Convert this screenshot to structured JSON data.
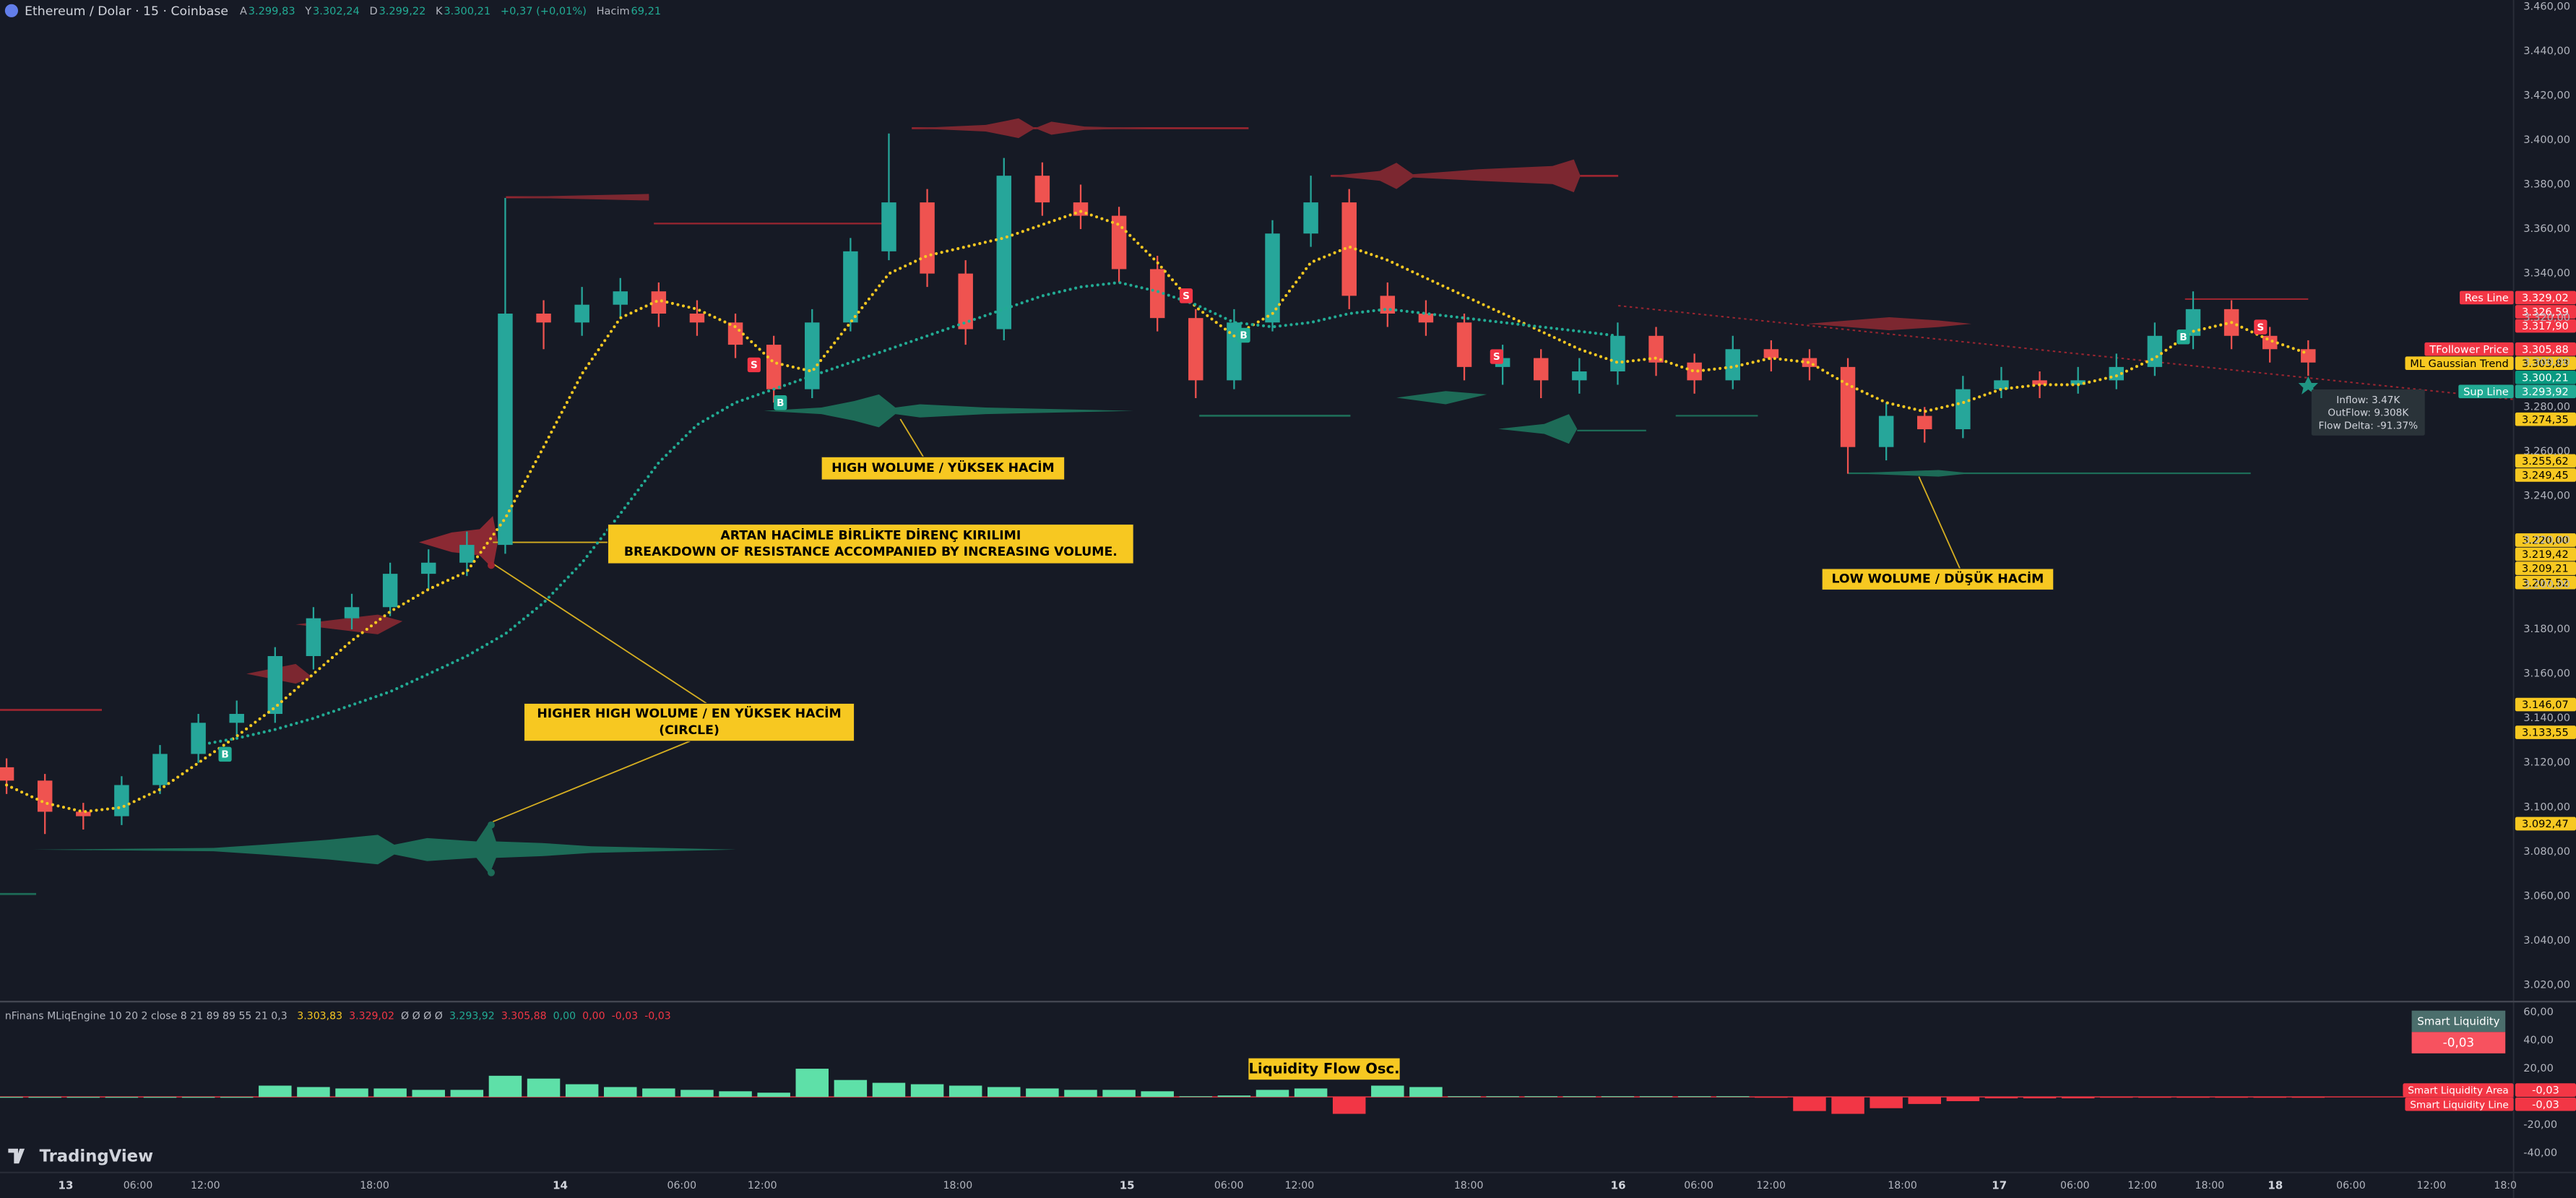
{
  "header": {
    "symbol": "Ethereum / Dolar · 15 · Coinbase",
    "quote": [
      {
        "key": "A",
        "value": "3.299,83"
      },
      {
        "key": "Y",
        "value": "3.302,24"
      },
      {
        "key": "D",
        "value": "3.299,22"
      },
      {
        "key": "K",
        "value": "3.300,21"
      }
    ],
    "change": "+0,37 (+0,01%)",
    "volume_key": "Hacim",
    "volume": "69,21"
  },
  "time_labels": [
    "13",
    "06:00",
    "12:00",
    "18:00",
    "14",
    "06:00",
    "12:00",
    "18:00",
    "15",
    "06:00",
    "12:00",
    "18:00",
    "16",
    "06:00",
    "12:00",
    "18:00",
    "17",
    "06:00",
    "12:00",
    "18:00",
    "18",
    "06:00",
    "12:00",
    "18:0"
  ],
  "chart_data": [
    {
      "type": "candlestick",
      "up_color": "#26a69a",
      "down_color": "#ef5350",
      "grid": false,
      "ylim": [
        3013,
        3463
      ],
      "yticks": [
        {
          "value": 3020,
          "label": "3.020,00"
        },
        {
          "value": 3040,
          "label": "3.040,00"
        },
        {
          "value": 3060,
          "label": "3.060,00"
        },
        {
          "value": 3080,
          "label": "3.080,00"
        },
        {
          "value": 3100,
          "label": "3.100,00"
        },
        {
          "value": 3120,
          "label": "3.120,00"
        },
        {
          "value": 3140,
          "label": "3.140,00"
        },
        {
          "value": 3160,
          "label": "3.160,00"
        },
        {
          "value": 3180,
          "label": "3.180,00"
        },
        {
          "value": 3200,
          "label": "3.200,00"
        },
        {
          "value": 3220,
          "label": "3.220,00"
        },
        {
          "value": 3240,
          "label": "3.240,00"
        },
        {
          "value": 3260,
          "label": "3.260,00"
        },
        {
          "value": 3280,
          "label": "3.280,00"
        },
        {
          "value": 3300,
          "label": "3.300,00"
        },
        {
          "value": 3320,
          "label": "3.320,00"
        },
        {
          "value": 3340,
          "label": "3.340,00"
        },
        {
          "value": 3360,
          "label": "3.360,00"
        },
        {
          "value": 3380,
          "label": "3.380,00"
        },
        {
          "value": 3400,
          "label": "3.400,00"
        },
        {
          "value": 3420,
          "label": "3.420,00"
        },
        {
          "value": 3440,
          "label": "3.440,00"
        },
        {
          "value": 3460,
          "label": "3.460,00"
        }
      ],
      "ohlc": [
        [
          3118,
          3122,
          3106,
          3112
        ],
        [
          3112,
          3115,
          3088,
          3098
        ],
        [
          3098,
          3102,
          3090,
          3096
        ],
        [
          3096,
          3114,
          3092,
          3110
        ],
        [
          3110,
          3128,
          3106,
          3124
        ],
        [
          3124,
          3142,
          3120,
          3138
        ],
        [
          3138,
          3148,
          3132,
          3142
        ],
        [
          3142,
          3172,
          3138,
          3168
        ],
        [
          3168,
          3190,
          3162,
          3185
        ],
        [
          3185,
          3196,
          3180,
          3190
        ],
        [
          3190,
          3210,
          3186,
          3205
        ],
        [
          3205,
          3216,
          3198,
          3210
        ],
        [
          3210,
          3224,
          3204,
          3218
        ],
        [
          3218,
          3374,
          3214,
          3322
        ],
        [
          3322,
          3328,
          3306,
          3318
        ],
        [
          3318,
          3334,
          3312,
          3326
        ],
        [
          3326,
          3338,
          3320,
          3332
        ],
        [
          3332,
          3336,
          3316,
          3322
        ],
        [
          3322,
          3328,
          3312,
          3318
        ],
        [
          3318,
          3322,
          3302,
          3308
        ],
        [
          3308,
          3312,
          3282,
          3288
        ],
        [
          3288,
          3324,
          3284,
          3318
        ],
        [
          3318,
          3356,
          3314,
          3350
        ],
        [
          3350,
          3403,
          3346,
          3372
        ],
        [
          3372,
          3378,
          3334,
          3340
        ],
        [
          3340,
          3346,
          3308,
          3315
        ],
        [
          3315,
          3392,
          3310,
          3384
        ],
        [
          3384,
          3390,
          3366,
          3372
        ],
        [
          3372,
          3380,
          3360,
          3366
        ],
        [
          3366,
          3370,
          3336,
          3342
        ],
        [
          3342,
          3348,
          3314,
          3320
        ],
        [
          3320,
          3324,
          3284,
          3292
        ],
        [
          3292,
          3324,
          3288,
          3318
        ],
        [
          3318,
          3364,
          3314,
          3358
        ],
        [
          3358,
          3384,
          3352,
          3372
        ],
        [
          3372,
          3378,
          3324,
          3330
        ],
        [
          3330,
          3336,
          3316,
          3322
        ],
        [
          3322,
          3328,
          3312,
          3318
        ],
        [
          3318,
          3322,
          3292,
          3298
        ],
        [
          3298,
          3308,
          3290,
          3302
        ],
        [
          3302,
          3306,
          3284,
          3292
        ],
        [
          3292,
          3302,
          3286,
          3296
        ],
        [
          3296,
          3318,
          3290,
          3312
        ],
        [
          3312,
          3316,
          3294,
          3300
        ],
        [
          3300,
          3304,
          3286,
          3292
        ],
        [
          3292,
          3312,
          3288,
          3306
        ],
        [
          3306,
          3310,
          3296,
          3302
        ],
        [
          3302,
          3306,
          3292,
          3298
        ],
        [
          3298,
          3302,
          3250,
          3262
        ],
        [
          3262,
          3282,
          3256,
          3276
        ],
        [
          3276,
          3280,
          3264,
          3270
        ],
        [
          3270,
          3294,
          3266,
          3288
        ],
        [
          3288,
          3298,
          3284,
          3292
        ],
        [
          3292,
          3296,
          3284,
          3290
        ],
        [
          3290,
          3298,
          3286,
          3292
        ],
        [
          3292,
          3304,
          3288,
          3298
        ],
        [
          3298,
          3318,
          3294,
          3312
        ],
        [
          3312,
          3332,
          3306,
          3324
        ],
        [
          3324,
          3328,
          3306,
          3312
        ],
        [
          3312,
          3316,
          3300,
          3306
        ],
        [
          3306,
          3310,
          3294,
          3300
        ]
      ],
      "lines": [
        {
          "color": "#f7c821",
          "style": "dotted",
          "values": [
            3110,
            3102,
            3098,
            3100,
            3108,
            3120,
            3132,
            3145,
            3160,
            3175,
            3188,
            3198,
            3206,
            3230,
            3262,
            3295,
            3320,
            3328,
            3324,
            3316,
            3300,
            3296,
            3318,
            3340,
            3348,
            3352,
            3356,
            3362,
            3368,
            3362,
            3345,
            3325,
            3312,
            3322,
            3345,
            3352,
            3346,
            3338,
            3330,
            3322,
            3314,
            3306,
            3300,
            3302,
            3296,
            3298,
            3302,
            3300,
            3290,
            3282,
            3278,
            3282,
            3288,
            3290,
            3290,
            3294,
            3302,
            3314,
            3318,
            3310,
            3304
          ]
        },
        {
          "color": "#22ab94",
          "style": "dotted",
          "values": [
            null,
            null,
            null,
            null,
            null,
            3128,
            3131,
            3135,
            3140,
            3146,
            3152,
            3160,
            3168,
            3178,
            3192,
            3210,
            3232,
            3255,
            3272,
            3282,
            3288,
            3294,
            3300,
            3306,
            3312,
            3318,
            3324,
            3330,
            3334,
            3336,
            3332,
            3326,
            3318,
            3316,
            3318,
            3322,
            3324,
            3322,
            3320,
            3318,
            3316,
            3314,
            3312,
            null,
            null,
            null,
            null,
            null,
            null,
            null,
            null,
            null,
            null,
            null,
            null,
            null,
            null,
            null,
            null,
            null,
            null
          ]
        }
      ],
      "price_labels": [
        {
          "name": "Res Line",
          "value": 3329.02,
          "label": "3.329,02",
          "color": "#f23645"
        },
        {
          "value": 3326.59,
          "label": "3.326,59",
          "color": "#f23645"
        },
        {
          "value": 3317.9,
          "label": "3.317,90",
          "color": "#f23645"
        },
        {
          "name": "TFollower Price",
          "value": 3305.88,
          "label": "3.305,88",
          "color": "#f23645"
        },
        {
          "name": "ML Gaussian Trend",
          "value": 3303.83,
          "label": "3.303,83",
          "color": "#f7c821"
        },
        {
          "value": 3300.21,
          "label": "3.300,21",
          "color": "#089981"
        },
        {
          "name": "Sup Line",
          "value": 3293.92,
          "label": "3.293,92",
          "color": "#22ab94"
        },
        {
          "value": 3274.35,
          "label": "3.274,35",
          "color": "#f7c821"
        },
        {
          "value": 3255.62,
          "label": "3.255,62",
          "color": "#f7c821"
        },
        {
          "value": 3249.45,
          "label": "3.249,45",
          "color": "#f7c821"
        },
        {
          "value": 3220,
          "label": "3.220,00",
          "color": "#f7c821"
        },
        {
          "value": 3219.42,
          "label": "3.219,42",
          "color": "#f7c821"
        },
        {
          "value": 3209.21,
          "label": "3.209,21",
          "color": "#f7c821"
        },
        {
          "value": 3207.52,
          "label": "3.207,52",
          "color": "#f7c821"
        },
        {
          "value": 3146.07,
          "label": "3.146,07",
          "color": "#f7c821"
        },
        {
          "value": 3133.55,
          "label": "3.133,55",
          "color": "#f7c821"
        },
        {
          "value": 3092.47,
          "label": "3.092,47",
          "color": "#f7c821"
        }
      ],
      "signals": [
        {
          "text": "B",
          "color": "#22ab94"
        },
        {
          "text": "B",
          "color": "#22ab94"
        },
        {
          "text": "B",
          "color": "#22ab94"
        },
        {
          "text": "B",
          "color": "#22ab94"
        },
        {
          "text": "S",
          "color": "#f23645"
        },
        {
          "text": "S",
          "color": "#f23645"
        },
        {
          "text": "S",
          "color": "#f23645"
        },
        {
          "text": "S",
          "color": "#f23645"
        }
      ],
      "annotations": [
        {
          "lines": [
            "HIGH WOLUME / YÜKSEK HACİM"
          ]
        },
        {
          "lines": [
            "ARTAN HACİMLE BİRLİKTE DİRENÇ KIRILIMI",
            "BREAKDOWN OF RESISTANCE ACCOMPANIED BY INCREASING VOLUME."
          ]
        },
        {
          "lines": [
            "HIGHER HIGH WOLUME / EN YÜKSEK HACİM",
            "(CIRCLE)"
          ]
        },
        {
          "lines": [
            "LOW WOLUME / DÜŞÜK HACİM"
          ]
        }
      ],
      "flow_box": [
        "Inflow: 3.47K",
        "OutFlow: 9.308K",
        "Flow Delta: -91.37%"
      ]
    },
    {
      "type": "bar",
      "title": "nFinans MLiqEngine 10 20 2 close 8 21 89 89 55 21 0,3",
      "legend_values": [
        {
          "label": "3.303,83",
          "color": "#f7c821"
        },
        {
          "label": "3.329,02",
          "color": "#f23645"
        },
        {
          "label": "Ø Ø Ø Ø",
          "color": "#b2b5be"
        },
        {
          "label": "3.293,92",
          "color": "#22ab94"
        },
        {
          "label": "3.305,88",
          "color": "#f23645"
        },
        {
          "label": "0,00",
          "color": "#22ab94"
        },
        {
          "label": "0,00",
          "color": "#f23645"
        },
        {
          "label": "-0,03",
          "color": "#f23645"
        },
        {
          "label": "-0,03",
          "color": "#f23645"
        }
      ],
      "pos_color": "#5ee0a8",
      "neg_color": "#f23645",
      "ylim": [
        -53,
        67
      ],
      "yticks": [
        {
          "value": 60,
          "label": "60,00"
        },
        {
          "value": 40,
          "label": "40,00"
        },
        {
          "value": 20,
          "label": "20,00"
        },
        {
          "value": -20,
          "label": "-20,00"
        },
        {
          "value": -40,
          "label": "-40,00"
        }
      ],
      "values": [
        0,
        0,
        0,
        0,
        0,
        0,
        0,
        8,
        7,
        6,
        6,
        5,
        5,
        15,
        13,
        9,
        7,
        6,
        5,
        4,
        3,
        20,
        12,
        10,
        9,
        8,
        7,
        6,
        5,
        5,
        4,
        0.5,
        1,
        5,
        6,
        -12,
        8,
        7,
        0.5,
        0.5,
        0.5,
        0.5,
        0.5,
        0.5,
        0.5,
        0.5,
        -0.5,
        -10,
        -12,
        -8,
        -5,
        -3,
        -1,
        -1,
        -1,
        -0.5,
        -0.5,
        -0.5,
        -0.5,
        -0.5,
        -0.5
      ],
      "annotation": "Liquidity Flow Osc.",
      "badge": {
        "title": "Smart Liquidity",
        "label": "-0,03"
      },
      "line_labels": [
        {
          "name": "Smart Liquidity Area",
          "value": -0.03,
          "label": "-0,03"
        },
        {
          "name": "Smart Liquidity Line",
          "value": -0.03,
          "label": "-0,03"
        }
      ]
    }
  ],
  "brand": "TradingView"
}
